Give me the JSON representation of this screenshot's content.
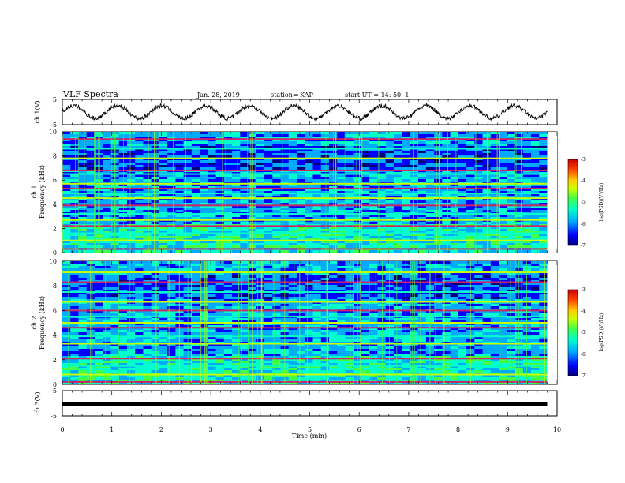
{
  "header": {
    "title": "VLF Spectra",
    "date": "Jan. 28, 2019",
    "station": "station= KAP",
    "start": "start  UT =   14: 50: 1"
  },
  "panels": {
    "ch1_wave_label": "ch.1(V)",
    "ch1_spec_label_a": "ch.1",
    "ch1_spec_label_b": "Frequency (kHz)",
    "ch2_spec_label_a": "ch.2",
    "ch2_spec_label_b": "Frequency (kHz)",
    "ch3_wave_label": "ch.3(V)"
  },
  "xaxis": {
    "label": "Time  (min)",
    "ticks": [
      "0",
      "1",
      "2",
      "3",
      "4",
      "5",
      "6",
      "7",
      "8",
      "9",
      "10"
    ]
  },
  "colorbar": {
    "label": "log(PSD)(V²/Hz)",
    "ticks": [
      "-3",
      "-4",
      "-5",
      "-6",
      "-7"
    ]
  },
  "chart_data": [
    {
      "type": "line",
      "panel": "ch.1 waveform",
      "ylabel": "ch.1(V)",
      "ylim": [
        -5,
        5
      ],
      "yticks": [
        "5",
        "-5"
      ],
      "x_range_min": [
        0,
        9.8
      ],
      "description_values": {
        "oscillation_amplitude_V": 2.5,
        "approx_cycles": 11
      }
    },
    {
      "type": "heatmap",
      "panel": "ch.1 spectrogram",
      "ylabel": "Frequency (kHz)",
      "ylim": [
        0,
        10
      ],
      "yticks": [
        "0",
        "2",
        "4",
        "6",
        "8",
        "10"
      ],
      "x_range_min": [
        0,
        9.8
      ],
      "line_frequencies_kHz": [
        0.3,
        1.0,
        1.6,
        2.2,
        2.7,
        3.2,
        3.9,
        4.5,
        4.9,
        5.3,
        5.7,
        6.5,
        6.8,
        7.8,
        8.6,
        9.4
      ]
    },
    {
      "type": "heatmap",
      "panel": "ch.2 spectrogram",
      "ylabel": "Frequency (kHz)",
      "ylim": [
        0,
        10
      ],
      "yticks": [
        "0",
        "2",
        "4",
        "6",
        "8",
        "10"
      ],
      "x_range_min": [
        0,
        9.8
      ],
      "line_frequencies_kHz": [
        0.2,
        0.8,
        1.5,
        2.1,
        3.3,
        3.9,
        4.6,
        5.0,
        5.5,
        6.0,
        6.7,
        7.5,
        8.3,
        9.1
      ]
    },
    {
      "type": "line",
      "panel": "ch.3 waveform",
      "ylabel": "ch.3(V)",
      "ylim": [
        -5,
        5
      ],
      "yticks": [
        "5",
        "-5"
      ],
      "x_range_min": [
        0,
        9.8
      ],
      "constant_value_V": 0
    }
  ],
  "colors": {
    "cmap": [
      "#00007a",
      "#0000ff",
      "#00aaff",
      "#00ffcc",
      "#44ff44",
      "#ccff00",
      "#ffcc00",
      "#ff4400",
      "#cc0000"
    ],
    "background": "#ffffff",
    "ink": "#000000"
  }
}
